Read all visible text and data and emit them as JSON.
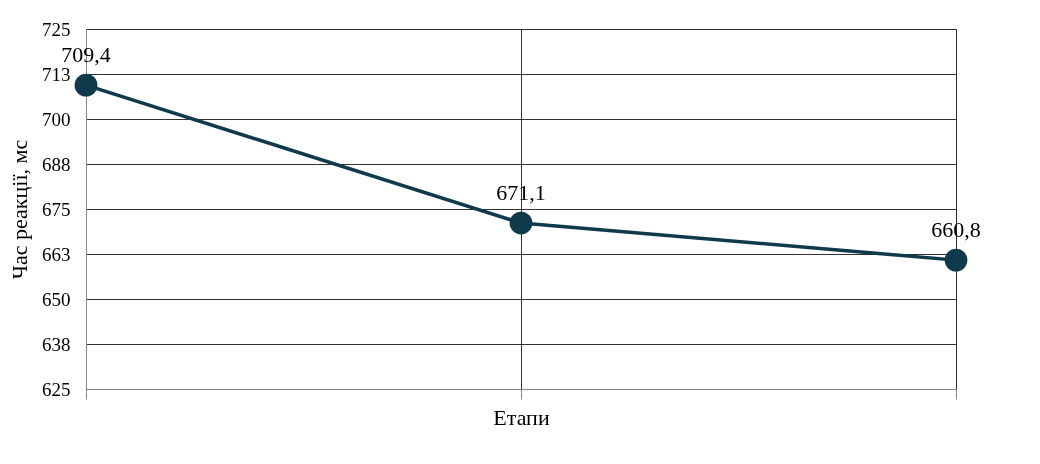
{
  "chart_data": {
    "type": "line",
    "xlabel": "Етапи",
    "ylabel": "Час реакції, мс",
    "categories": [
      null,
      null,
      null
    ],
    "series": [
      {
        "color": "#0e3a4c",
        "values": [
          709.4,
          671.1,
          660.8
        ],
        "value_labels": [
          "709,4",
          "671,1",
          "660,8"
        ]
      }
    ],
    "ylim": [
      625,
      725
    ],
    "yticks": [
      625,
      {
        "value": 637.5,
        "label": "638"
      },
      650,
      {
        "value": 662.5,
        "label": "663"
      },
      675,
      {
        "value": 687.5,
        "label": "688"
      },
      700,
      {
        "value": 712.5,
        "label": "713"
      },
      725
    ],
    "grid": true,
    "marker": "circle",
    "line_style": "solid",
    "tick_labels": "y"
  }
}
